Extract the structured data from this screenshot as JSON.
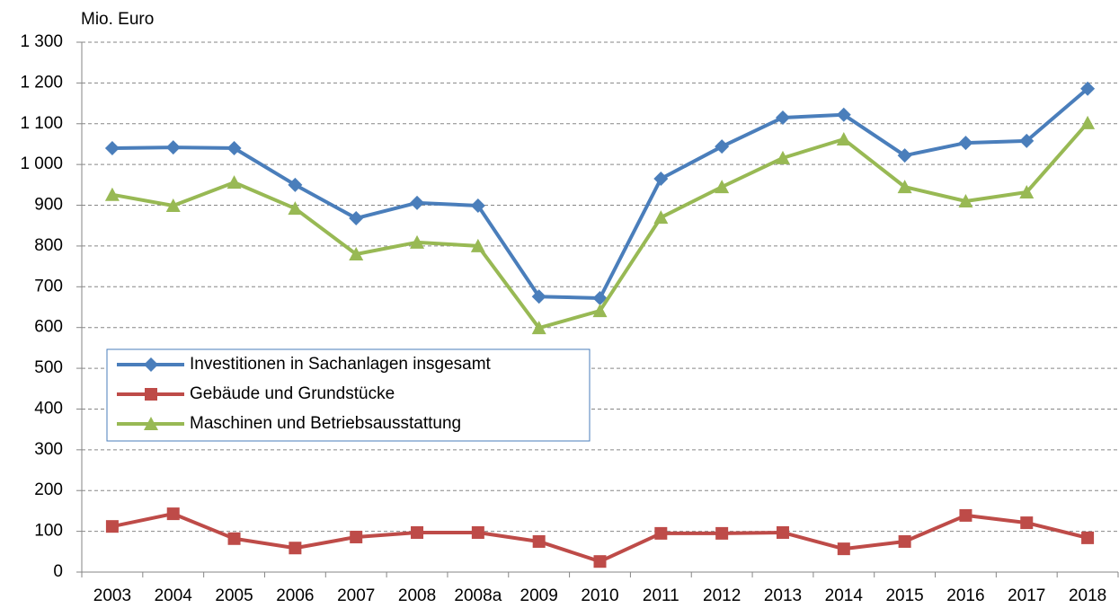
{
  "chart_data": {
    "type": "line",
    "y_label": "Mio. Euro",
    "categories": [
      "2003",
      "2004",
      "2005",
      "2006",
      "2007",
      "2008",
      "2008a",
      "2009",
      "2010",
      "2011",
      "2012",
      "2013",
      "2014",
      "2015",
      "2016",
      "2017",
      "2018"
    ],
    "series": [
      {
        "name": "Investitionen in Sachanlagen insgesamt",
        "color": "#4a7ebb",
        "marker": "diamond",
        "values": [
          1040,
          1042,
          1040,
          950,
          868,
          906,
          899,
          676,
          672,
          965,
          1044,
          1115,
          1122,
          1022,
          1053,
          1058,
          1186
        ]
      },
      {
        "name": "Gebäude und Grundstücke",
        "color": "#be4b48",
        "marker": "square",
        "values": [
          112,
          143,
          82,
          59,
          86,
          97,
          97,
          75,
          26,
          95,
          95,
          97,
          57,
          75,
          139,
          121,
          84
        ]
      },
      {
        "name": "Maschinen und Betriebsausstattung",
        "color": "#98b954",
        "marker": "triangle",
        "values": [
          926,
          899,
          956,
          892,
          780,
          809,
          800,
          599,
          641,
          870,
          945,
          1016,
          1062,
          945,
          910,
          932,
          1102
        ]
      }
    ],
    "ylim": [
      0,
      1300
    ],
    "yticks": [
      0,
      100,
      200,
      300,
      400,
      500,
      600,
      700,
      800,
      900,
      {
        "value": 1000,
        "label": "1 000"
      },
      {
        "value": 1100,
        "label": "1 100"
      },
      {
        "value": 1200,
        "label": "1 200"
      },
      {
        "value": 1300,
        "label": "1 300"
      }
    ],
    "grid": true,
    "legend": "left"
  }
}
